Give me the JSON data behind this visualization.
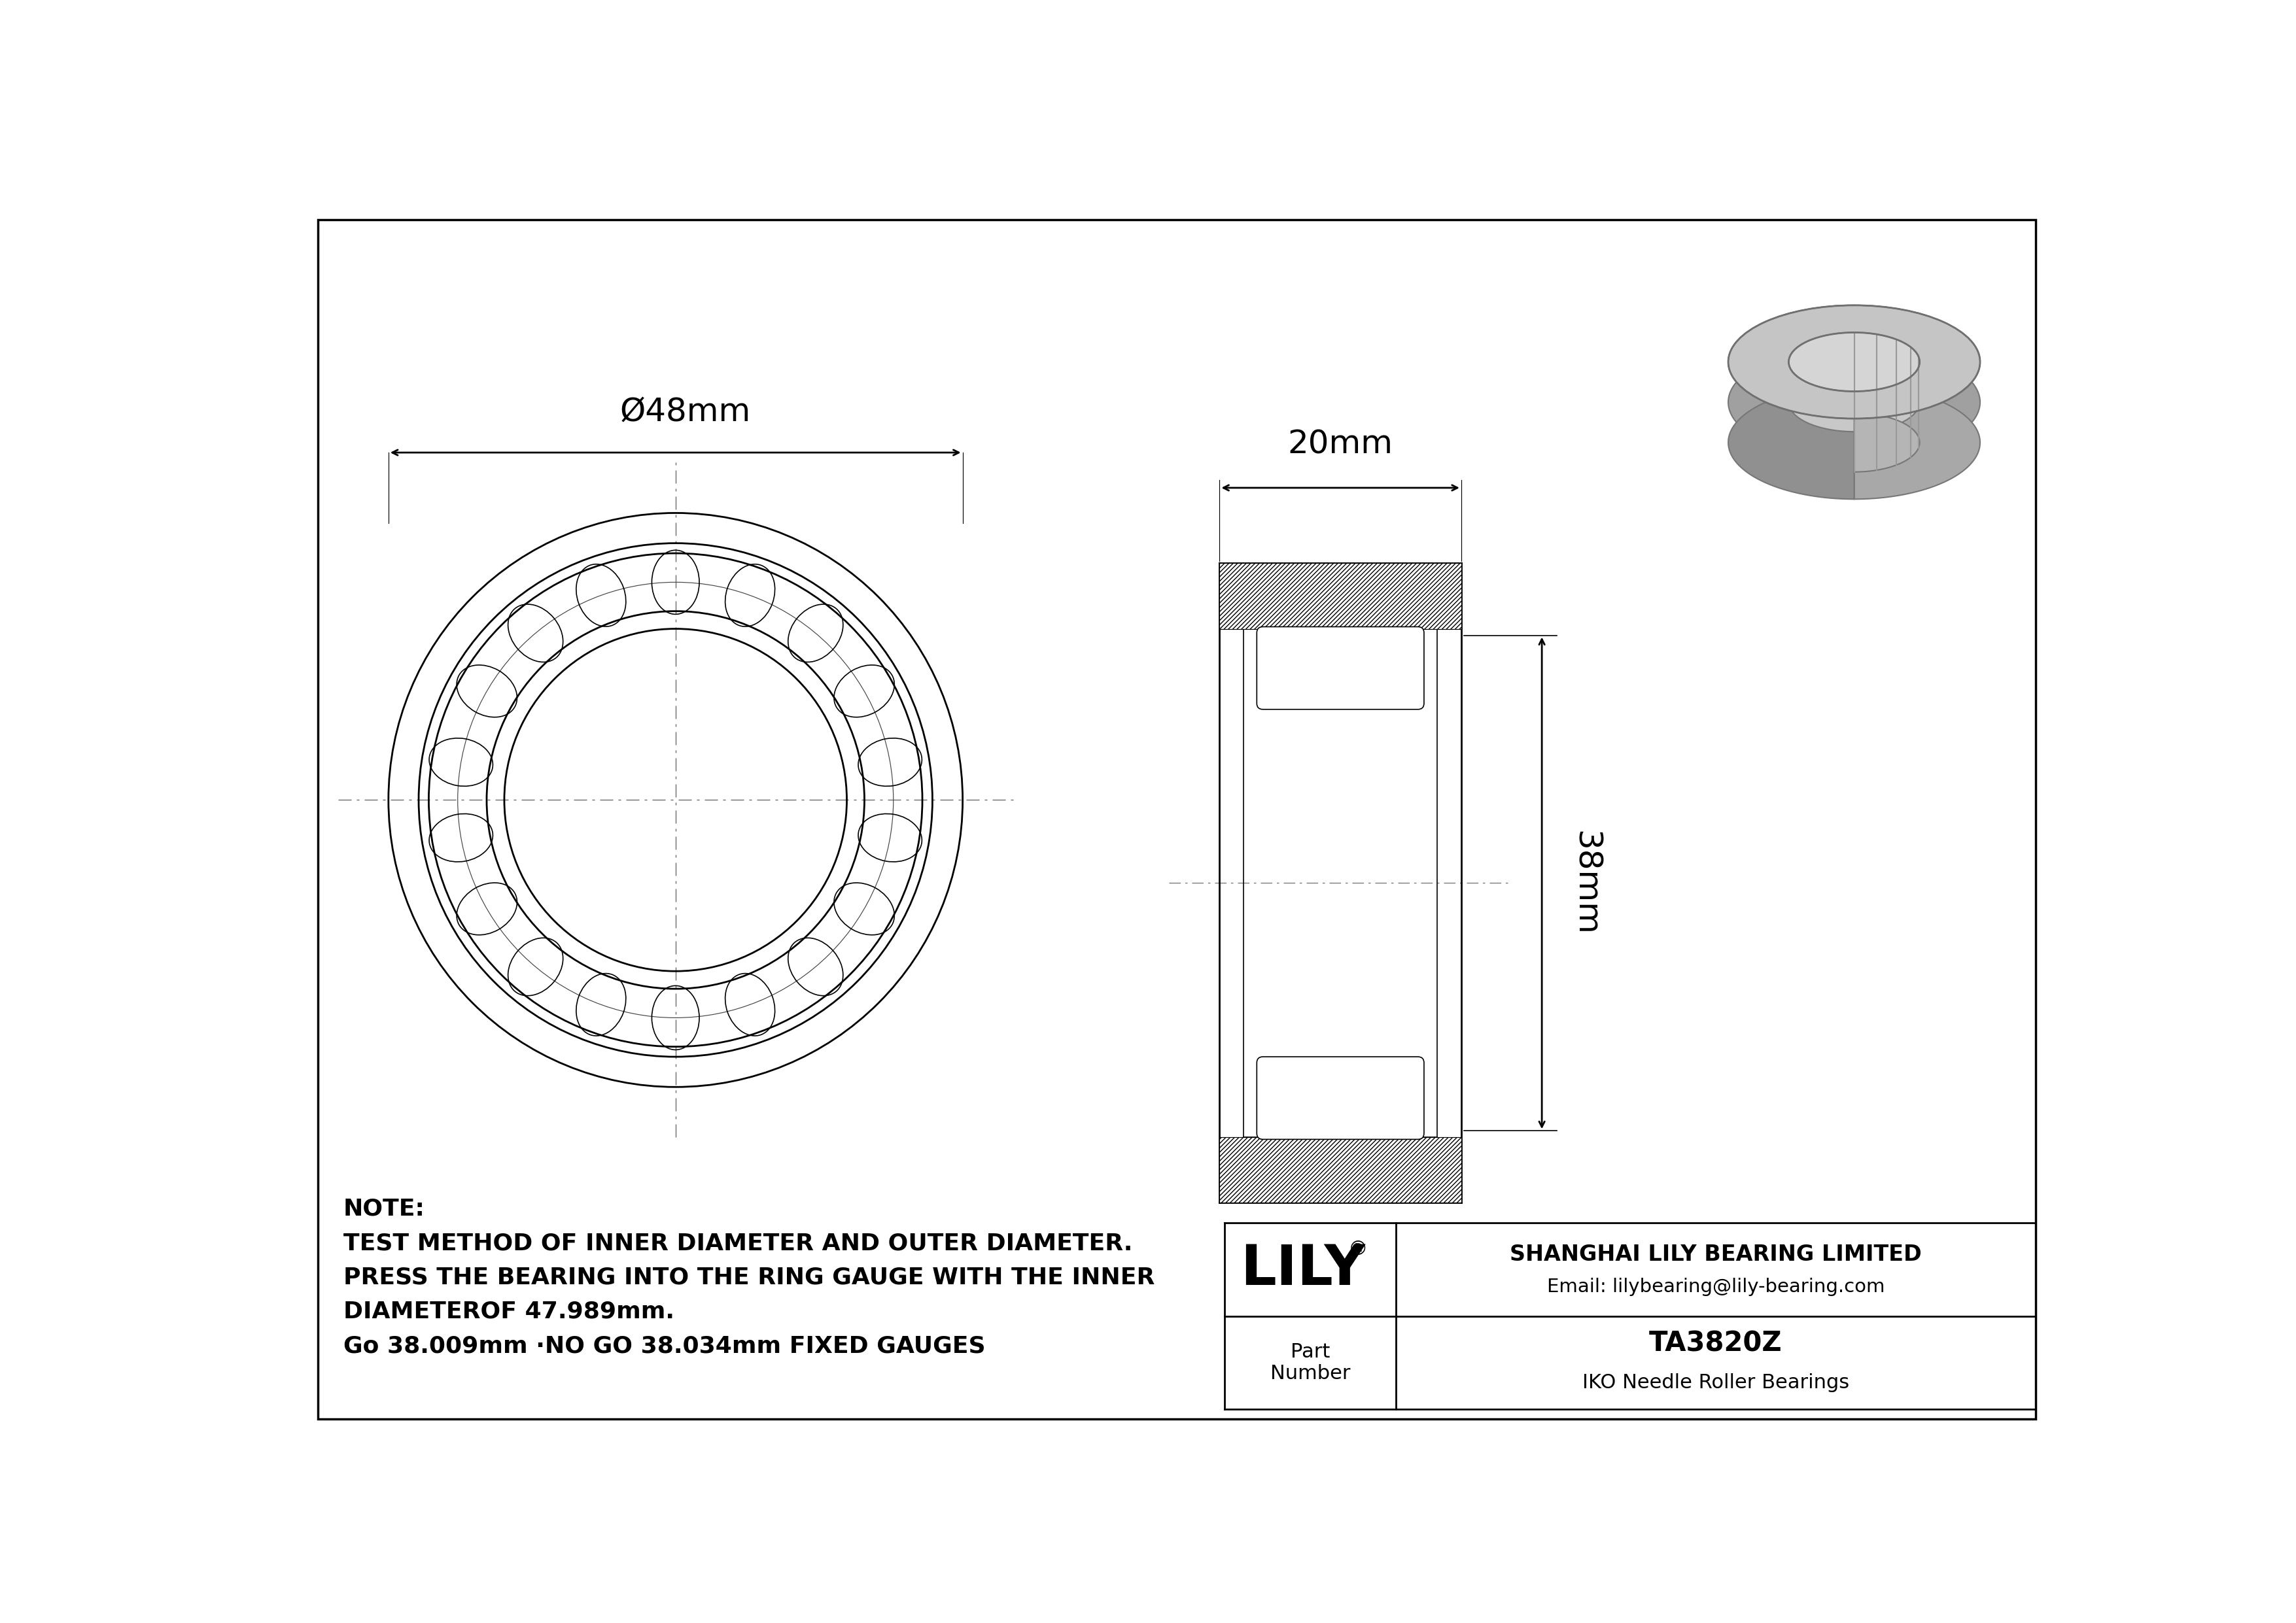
{
  "bg_color": "#ffffff",
  "line_color": "#000000",
  "gray_color": "#b0b0b0",
  "gray_light": "#cccccc",
  "gray_dark": "#909090",
  "outer_diameter_label": "Ø48mm",
  "width_label": "20mm",
  "height_label": "38mm",
  "note_line1": "NOTE:",
  "note_line2": "TEST METHOD OF INNER DIAMETER AND OUTER DIAMETER.",
  "note_line3": "PRESS THE BEARING INTO THE RING GAUGE WITH THE INNER",
  "note_line4": "DIAMETEROF 47.989mm.",
  "note_line5": "Go 38.009mm ·NO GO 38.034mm FIXED GAUGES",
  "company_name": "SHANGHAI LILY BEARING LIMITED",
  "company_email": "Email: lilybearing@lily-bearing.com",
  "part_label": "Part\nNumber",
  "part_number": "TA3820Z",
  "part_type": "IKO Needle Roller Bearings",
  "lily_logo": "LILY",
  "registered": "®",
  "lw": 2.0,
  "lw_thin": 1.2
}
